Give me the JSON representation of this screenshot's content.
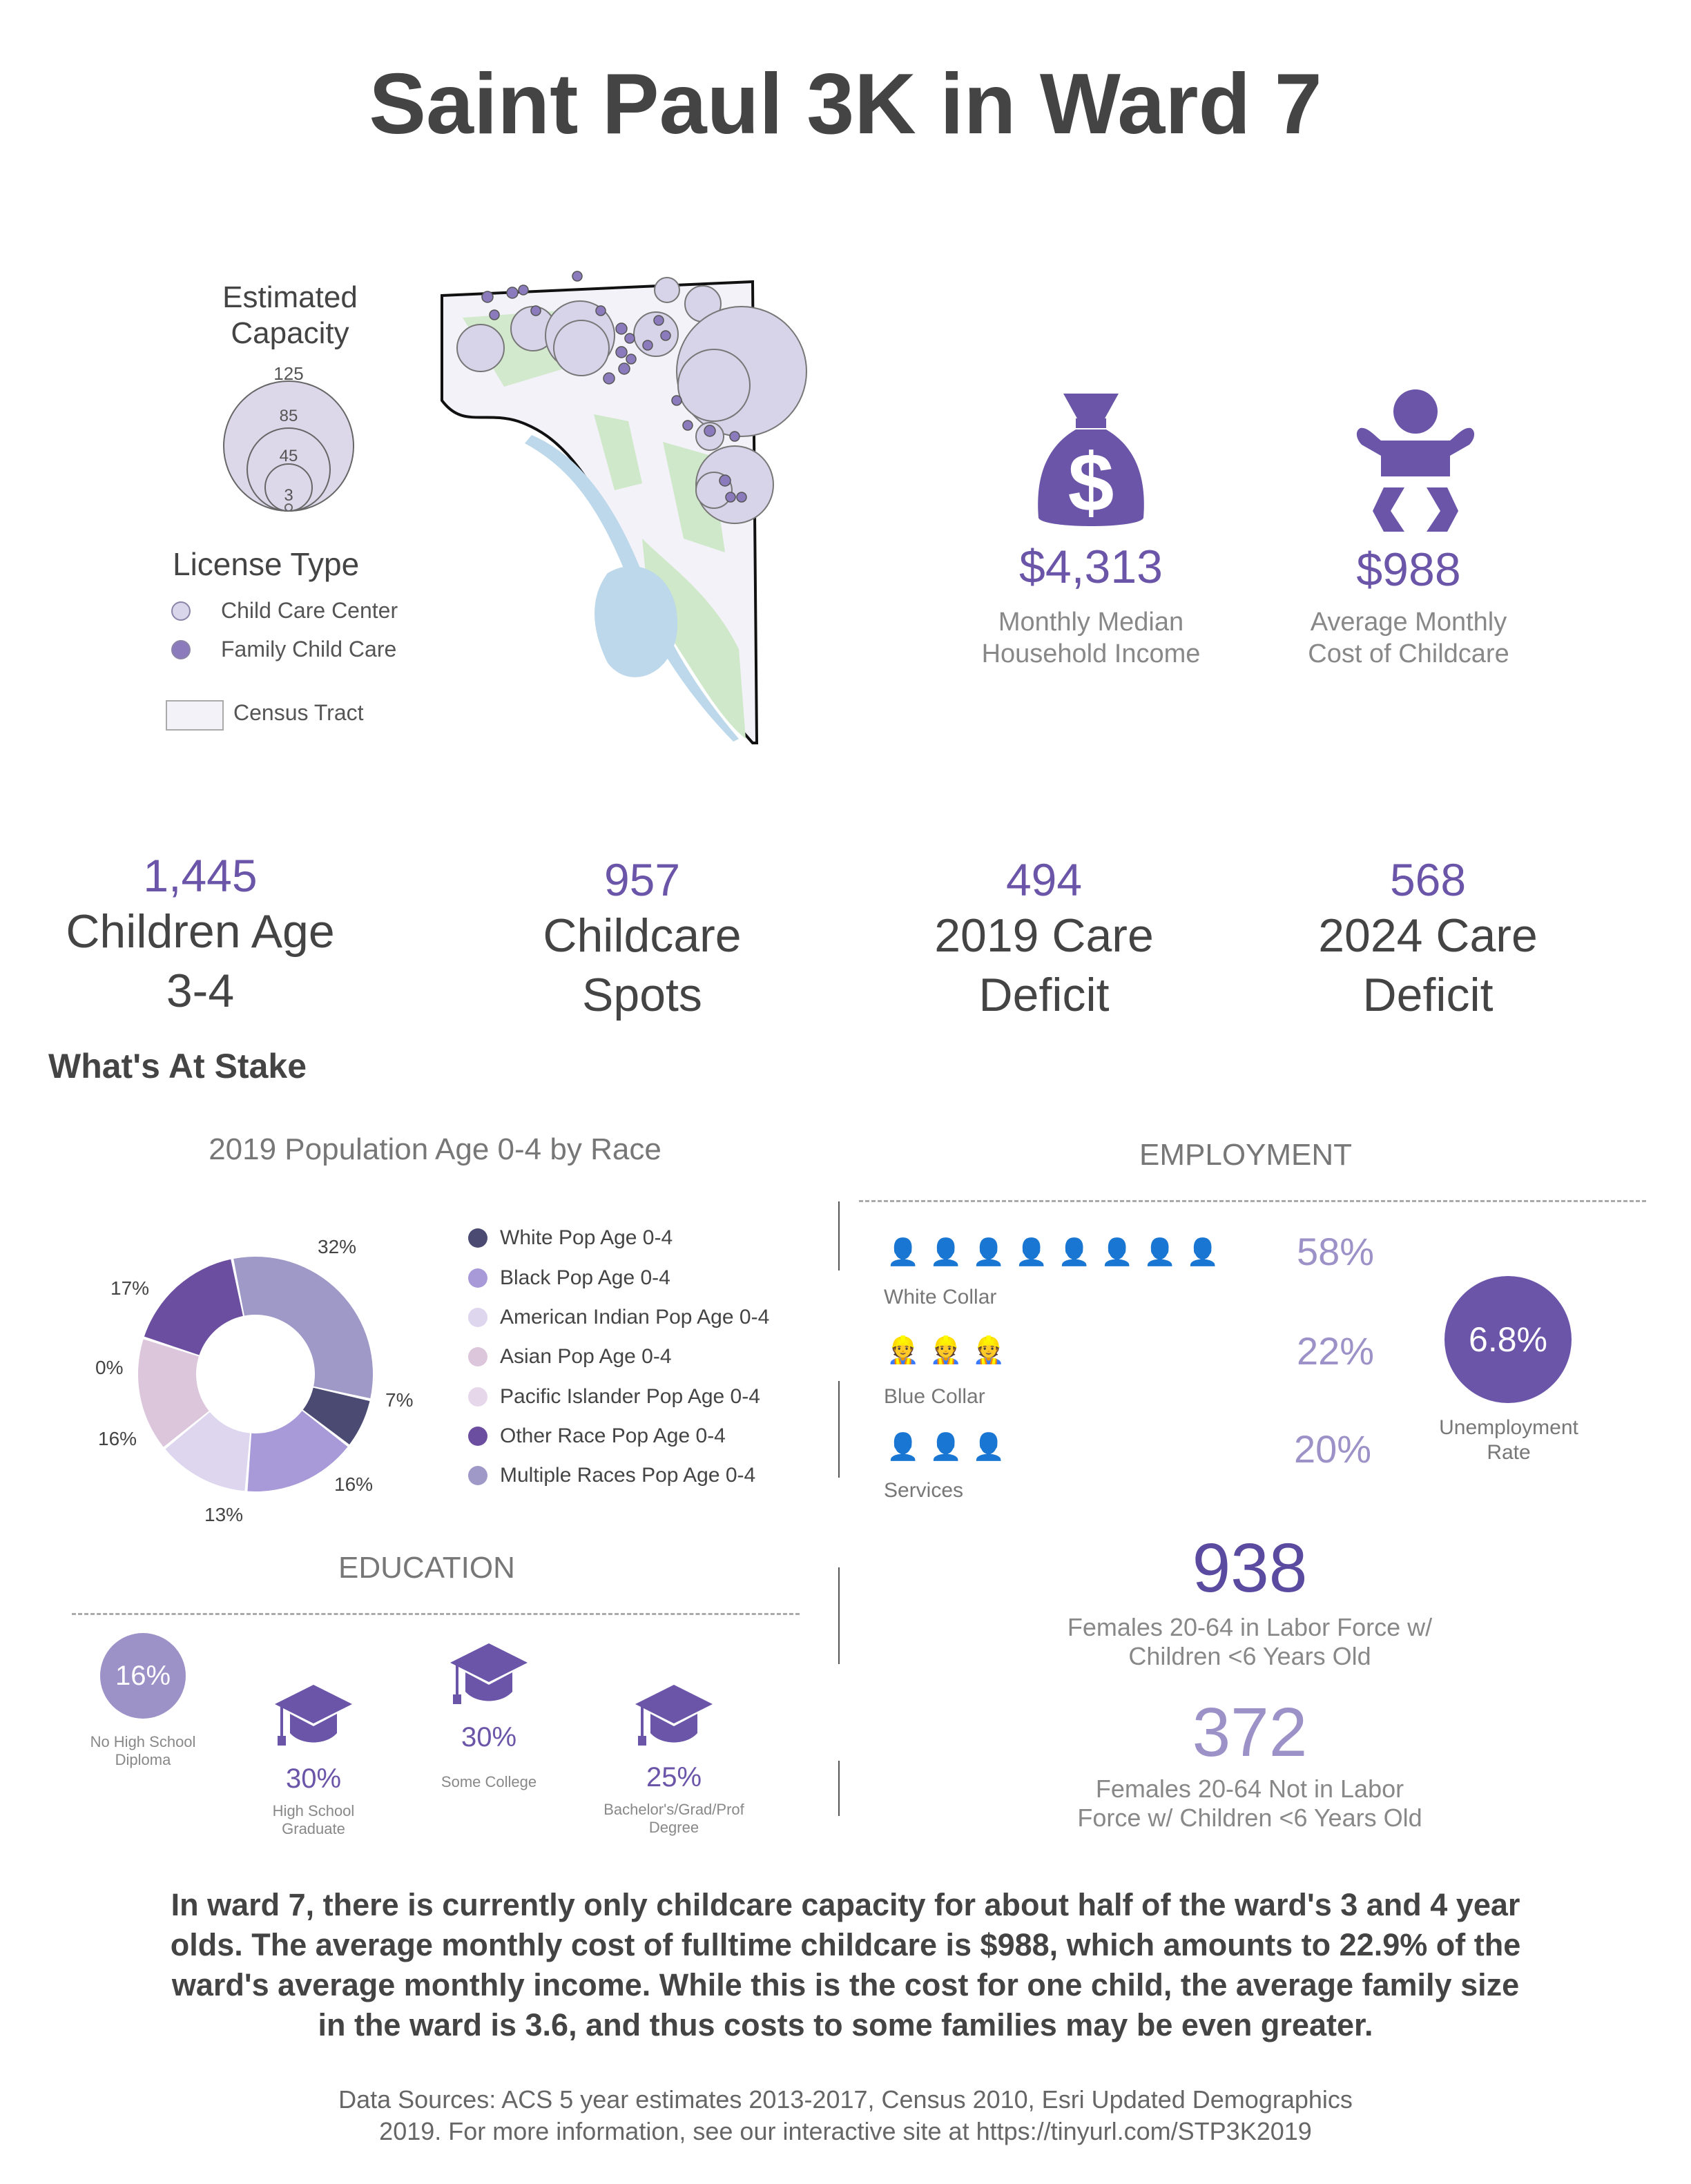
{
  "title": "Saint Paul 3K in Ward 7",
  "legend": {
    "capacity_title_line1": "Estimated",
    "capacity_title_line2": "Capacity",
    "capacity_values": [
      "125",
      "85",
      "45",
      "3"
    ],
    "license_title": "License Type",
    "license_items": [
      {
        "label": "Child Care Center",
        "color": "#d9d5ea"
      },
      {
        "label": "Family Child Care",
        "color": "#8b7bbd"
      }
    ],
    "census_label": "Census Tract"
  },
  "income": {
    "value": "$4,313",
    "label_line1": "Monthly Median",
    "label_line2": "Household Income"
  },
  "childcare_cost": {
    "value": "$988",
    "label_line1": "Average Monthly",
    "label_line2": "Cost of Childcare"
  },
  "stats": [
    {
      "number": "1,445",
      "line1": "Children Age",
      "line2": "3-4"
    },
    {
      "number": "957",
      "line1": "Childcare",
      "line2": "Spots"
    },
    {
      "number": "494",
      "line1": "2019 Care",
      "line2": "Deficit"
    },
    {
      "number": "568",
      "line1": "2024 Care",
      "line2": "Deficit"
    }
  ],
  "stake_heading": "What's At Stake",
  "race_chart": {
    "title": "2019 Population Age 0-4 by Race",
    "series": [
      {
        "label": "White Pop Age 0-4",
        "pct": 7,
        "text": "7%",
        "color": "#4a4a72"
      },
      {
        "label": "Black Pop Age 0-4",
        "pct": 16,
        "text": "16%",
        "color": "#a89ad8"
      },
      {
        "label": "American Indian Pop Age 0-4",
        "pct": 13,
        "text": "13%",
        "color": "#ddd6ee"
      },
      {
        "label": "Asian Pop Age 0-4",
        "pct": 16,
        "text": "16%",
        "color": "#dcc6dc"
      },
      {
        "label": "Pacific Islander Pop Age 0-4",
        "pct": 0,
        "text": "0%",
        "color": "#e6d8ea"
      },
      {
        "label": "Other Race Pop Age 0-4",
        "pct": 17,
        "text": "17%",
        "color": "#6b4ea0"
      },
      {
        "label": "Multiple Races Pop Age 0-4",
        "pct": 32,
        "text": "32%",
        "color": "#9f99c8"
      }
    ]
  },
  "employment": {
    "title": "EMPLOYMENT",
    "rows": [
      {
        "label": "White Collar",
        "pct": "58%",
        "icons": 8
      },
      {
        "label": "Blue Collar",
        "pct": "22%",
        "icons": 3
      },
      {
        "label": "Services",
        "pct": "20%",
        "icons": 3
      }
    ],
    "unemployment_value": "6.8%",
    "unemployment_label_line1": "Unemployment",
    "unemployment_label_line2": "Rate",
    "females_in": {
      "value": "938",
      "line1": "Females 20-64 in Labor Force w/",
      "line2": "Children <6 Years Old"
    },
    "females_out": {
      "value": "372",
      "line1": "Females 20-64 Not in Labor",
      "line2": "Force w/ Children <6 Years Old"
    }
  },
  "education": {
    "title": "EDUCATION",
    "no_hs": {
      "value": "16%",
      "line1": "No High School",
      "line2": "Diploma"
    },
    "hs": {
      "value": "30%",
      "line1": "High School",
      "line2": "Graduate"
    },
    "college": {
      "value": "30%",
      "line1": "Some College"
    },
    "bachelors": {
      "value": "25%",
      "line1": "Bachelor's/Grad/Prof",
      "line2": "Degree"
    }
  },
  "summary": {
    "line1": "In ward 7, there is currently only childcare capacity for about half of the ward's 3 and 4 year",
    "line2": "olds. The average monthly cost of fulltime childcare is $988, which amounts to 22.9% of the",
    "line3": "ward's average monthly income. While this is the cost for one child, the average family size",
    "line4": "in the ward is 3.6, and thus costs to some families may be even greater."
  },
  "sources": {
    "line1": "Data Sources: ACS 5 year estimates 2013-2017, Census 2010, Esri Updated Demographics",
    "line2": "2019. For more information, see our interactive site at https://tinyurl.com/STP3K2019"
  },
  "colors": {
    "accent": "#6b55a8",
    "accent_light": "#9d92c8",
    "text": "#444444"
  },
  "icons": [
    "money-bag-icon",
    "baby-icon",
    "white-collar-worker-icon",
    "blue-collar-worker-icon",
    "service-worker-icon",
    "graduation-cap-icon"
  ]
}
